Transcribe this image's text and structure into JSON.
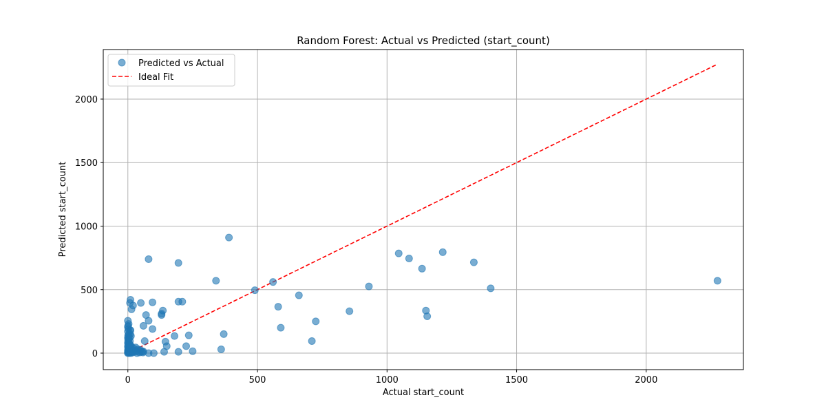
{
  "chart_data": {
    "type": "scatter",
    "title": "Random Forest: Actual vs Predicted (start_count)",
    "xlabel": "Actual start_count",
    "ylabel": "Predicted start_count",
    "xlim": [
      -95,
      2375
    ],
    "ylim": [
      -130,
      2390
    ],
    "xticks": [
      0,
      500,
      1000,
      1500,
      2000
    ],
    "yticks": [
      0,
      500,
      1000,
      1500,
      2000
    ],
    "grid": true,
    "legend_position": "top-left",
    "series": [
      {
        "name": "Predicted vs Actual",
        "kind": "scatter",
        "color": "#1f77b4",
        "points": [
          [
            0,
            0
          ],
          [
            0,
            5
          ],
          [
            1,
            10
          ],
          [
            2,
            15
          ],
          [
            0,
            20
          ],
          [
            1,
            30
          ],
          [
            2,
            40
          ],
          [
            0,
            50
          ],
          [
            1,
            60
          ],
          [
            3,
            70
          ],
          [
            0,
            80
          ],
          [
            2,
            90
          ],
          [
            1,
            100
          ],
          [
            3,
            110
          ],
          [
            0,
            120
          ],
          [
            2,
            130
          ],
          [
            1,
            140
          ],
          [
            4,
            150
          ],
          [
            0,
            170
          ],
          [
            2,
            190
          ],
          [
            0,
            205
          ],
          [
            1,
            215
          ],
          [
            3,
            230
          ],
          [
            0,
            255
          ],
          [
            5,
            0
          ],
          [
            6,
            10
          ],
          [
            7,
            20
          ],
          [
            8,
            30
          ],
          [
            5,
            40
          ],
          [
            9,
            55
          ],
          [
            6,
            75
          ],
          [
            8,
            95
          ],
          [
            7,
            120
          ],
          [
            9,
            150
          ],
          [
            10,
            180
          ],
          [
            12,
            0
          ],
          [
            14,
            8
          ],
          [
            15,
            20
          ],
          [
            13,
            30
          ],
          [
            16,
            45
          ],
          [
            11,
            60
          ],
          [
            12,
            135
          ],
          [
            9,
            180
          ],
          [
            18,
            5
          ],
          [
            20,
            12
          ],
          [
            22,
            22
          ],
          [
            25,
            35
          ],
          [
            28,
            10
          ],
          [
            30,
            45
          ],
          [
            32,
            20
          ],
          [
            35,
            0
          ],
          [
            38,
            15
          ],
          [
            40,
            30
          ],
          [
            45,
            5
          ],
          [
            48,
            25
          ],
          [
            52,
            10
          ],
          [
            55,
            15
          ],
          [
            58,
            5
          ],
          [
            60,
            12
          ],
          [
            8,
            395
          ],
          [
            10,
            420
          ],
          [
            14,
            345
          ],
          [
            20,
            375
          ],
          [
            50,
            395
          ],
          [
            60,
            215
          ],
          [
            65,
            95
          ],
          [
            70,
            300
          ],
          [
            80,
            255
          ],
          [
            80,
            740
          ],
          [
            95,
            190
          ],
          [
            95,
            400
          ],
          [
            100,
            0
          ],
          [
            80,
            0
          ],
          [
            130,
            310
          ],
          [
            130,
            300
          ],
          [
            135,
            335
          ],
          [
            145,
            90
          ],
          [
            150,
            55
          ],
          [
            140,
            10
          ],
          [
            180,
            135
          ],
          [
            195,
            405
          ],
          [
            195,
            10
          ],
          [
            195,
            710
          ],
          [
            210,
            405
          ],
          [
            225,
            55
          ],
          [
            235,
            140
          ],
          [
            250,
            15
          ],
          [
            340,
            570
          ],
          [
            360,
            30
          ],
          [
            370,
            150
          ],
          [
            390,
            910
          ],
          [
            490,
            495
          ],
          [
            560,
            560
          ],
          [
            580,
            365
          ],
          [
            590,
            200
          ],
          [
            660,
            455
          ],
          [
            710,
            95
          ],
          [
            725,
            250
          ],
          [
            855,
            330
          ],
          [
            930,
            525
          ],
          [
            1045,
            785
          ],
          [
            1085,
            745
          ],
          [
            1135,
            665
          ],
          [
            1150,
            335
          ],
          [
            1155,
            290
          ],
          [
            1215,
            795
          ],
          [
            1335,
            715
          ],
          [
            1400,
            510
          ],
          [
            2275,
            570
          ]
        ]
      },
      {
        "name": "Ideal Fit",
        "kind": "line",
        "style": "dashed",
        "color": "#ff0000",
        "x": [
          0,
          2275
        ],
        "y": [
          0,
          2275
        ]
      }
    ]
  }
}
